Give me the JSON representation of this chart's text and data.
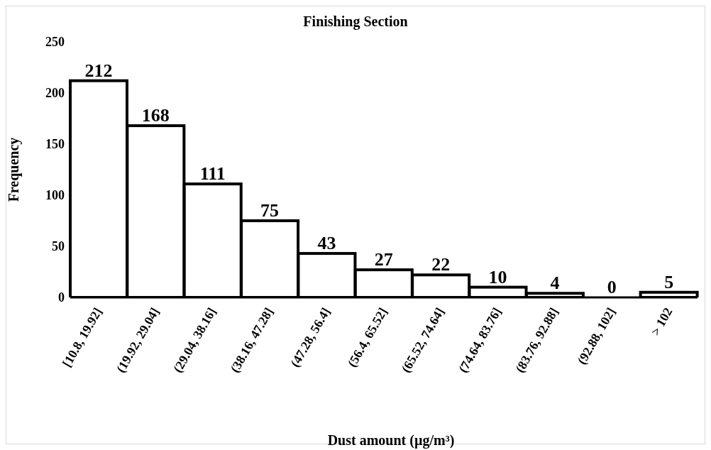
{
  "chart_data": {
    "type": "bar",
    "title": "Finishing Section",
    "xlabel": "Dust amount (µg/m³)",
    "ylabel": "Frequency",
    "categories": [
      "[10.8, 19.92]",
      "(19.92, 29.04]",
      "(29.04, 38.16]",
      "(38.16, 47.28]",
      "(47.28, 56.4]",
      "(56.4, 65.52]",
      "(65.52, 74.64]",
      "(74.64, 83.76]",
      "(83.76, 92.88]",
      "(92.88, 102]",
      "> 102"
    ],
    "values": [
      212,
      168,
      111,
      75,
      43,
      27,
      22,
      10,
      4,
      0,
      5
    ],
    "color": "#000000",
    "ylim": [
      0,
      250
    ],
    "yticks": [
      0,
      50,
      100,
      150,
      200,
      250
    ],
    "grid": false,
    "data_labels": true,
    "legend": false
  }
}
